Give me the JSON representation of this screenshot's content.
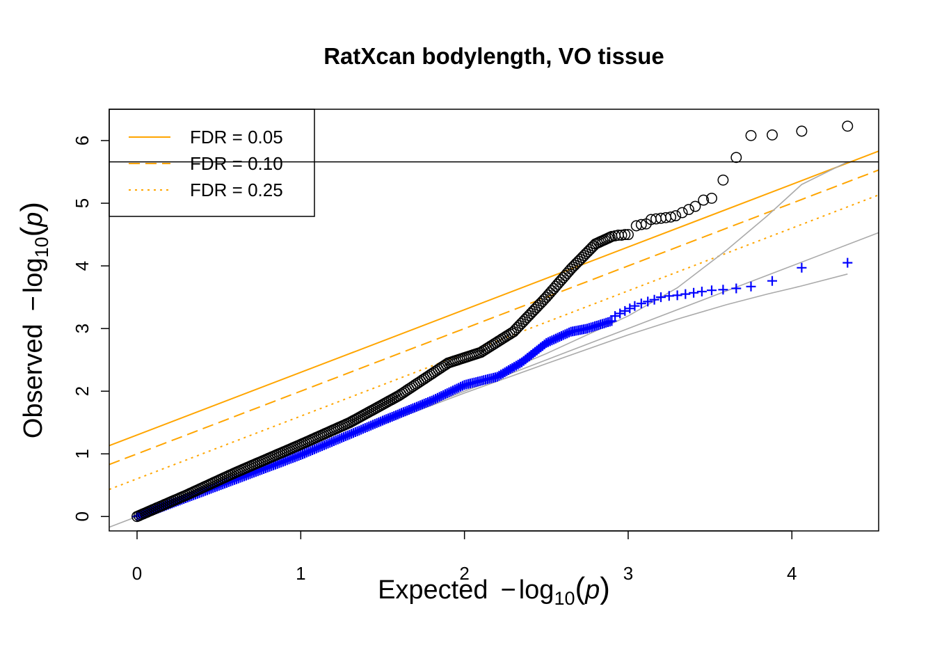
{
  "chart_data": {
    "type": "scatter",
    "title": "RatXcan bodylength, VO tissue",
    "xlabel": {
      "prefix": "Expected",
      "neg": "−",
      "log": "log",
      "base": "10",
      "arg": "p"
    },
    "ylabel": {
      "prefix": "Observed",
      "neg": "−",
      "log": "log",
      "base": "10",
      "arg": "p"
    },
    "xlim": [
      -0.17,
      4.53
    ],
    "ylim": [
      -0.23,
      6.5
    ],
    "xticks": [
      0,
      1,
      2,
      3,
      4
    ],
    "xtick_labels": [
      "0",
      "1",
      "2",
      "3",
      "4"
    ],
    "yticks": [
      0,
      1,
      2,
      3,
      4,
      5,
      6
    ],
    "ytick_labels": [
      "0",
      "1",
      "2",
      "3",
      "4",
      "5",
      "6"
    ],
    "grid": false,
    "legend_position": "top-left",
    "legend": [
      {
        "label": "FDR = 0.05",
        "style": "solid",
        "color": "#FFA500"
      },
      {
        "label": "FDR = 0.10",
        "style": "dashed",
        "color": "#FFA500"
      },
      {
        "label": "FDR = 0.25",
        "style": "dotted",
        "color": "#FFA500"
      }
    ],
    "reference_lines": {
      "fdr_lines": [
        {
          "style": "solid",
          "intercept": 1.301,
          "slope": 1
        },
        {
          "style": "dashed",
          "intercept": 1.0,
          "slope": 1
        },
        {
          "style": "dotted",
          "intercept": 0.602,
          "slope": 1
        }
      ],
      "bonferroni_threshold": 5.66,
      "identity": {
        "intercept": 0,
        "slope": 1,
        "color": "#AAAAAA"
      },
      "confidence_band": {
        "color": "#AAAAAA",
        "upper": [
          [
            0,
            0.01
          ],
          [
            1,
            1.02
          ],
          [
            2,
            2.05
          ],
          [
            2.5,
            2.6
          ],
          [
            3,
            3.2
          ],
          [
            3.3,
            3.65
          ],
          [
            3.6,
            4.25
          ],
          [
            3.85,
            4.8
          ],
          [
            4.06,
            5.3
          ],
          [
            4.34,
            5.66
          ]
        ],
        "lower": [
          [
            0,
            0
          ],
          [
            1,
            0.99
          ],
          [
            2,
            1.97
          ],
          [
            2.5,
            2.44
          ],
          [
            3,
            2.9
          ],
          [
            3.3,
            3.15
          ],
          [
            3.6,
            3.38
          ],
          [
            3.85,
            3.55
          ],
          [
            4.06,
            3.68
          ],
          [
            4.34,
            3.87
          ]
        ]
      }
    },
    "series": [
      {
        "name": "",
        "marker": "circle",
        "color": "#000000",
        "curve": [
          [
            0,
            0
          ],
          [
            0.3,
            0.34
          ],
          [
            0.6,
            0.7
          ],
          [
            1,
            1.15
          ],
          [
            1.3,
            1.5
          ],
          [
            1.6,
            1.93
          ],
          [
            1.9,
            2.45
          ],
          [
            2.1,
            2.62
          ],
          [
            2.3,
            2.95
          ],
          [
            2.5,
            3.5
          ],
          [
            2.65,
            3.95
          ],
          [
            2.8,
            4.35
          ],
          [
            2.9,
            4.47
          ]
        ],
        "points": [
          [
            2.92,
            4.48
          ],
          [
            2.94,
            4.49
          ],
          [
            2.96,
            4.49
          ],
          [
            2.98,
            4.5
          ],
          [
            3.0,
            4.5
          ],
          [
            3.05,
            4.64
          ],
          [
            3.08,
            4.66
          ],
          [
            3.11,
            4.67
          ],
          [
            3.14,
            4.74
          ],
          [
            3.17,
            4.75
          ],
          [
            3.2,
            4.76
          ],
          [
            3.23,
            4.77
          ],
          [
            3.26,
            4.78
          ],
          [
            3.29,
            4.8
          ],
          [
            3.33,
            4.85
          ],
          [
            3.37,
            4.9
          ],
          [
            3.41,
            4.95
          ],
          [
            3.46,
            5.05
          ],
          [
            3.51,
            5.08
          ],
          [
            3.58,
            5.37
          ],
          [
            3.66,
            5.73
          ],
          [
            3.75,
            6.08
          ],
          [
            3.88,
            6.09
          ],
          [
            4.06,
            6.15
          ],
          [
            4.34,
            6.23
          ]
        ]
      },
      {
        "name": "",
        "marker": "plus",
        "color": "#0000FF",
        "curve": [
          [
            0,
            0
          ],
          [
            0.5,
            0.49
          ],
          [
            1,
            0.98
          ],
          [
            1.5,
            1.53
          ],
          [
            1.8,
            1.85
          ],
          [
            2.0,
            2.1
          ],
          [
            2.2,
            2.23
          ],
          [
            2.35,
            2.46
          ],
          [
            2.5,
            2.77
          ],
          [
            2.65,
            2.95
          ],
          [
            2.75,
            3.0
          ],
          [
            2.9,
            3.12
          ]
        ],
        "points": [
          [
            2.92,
            3.2
          ],
          [
            2.95,
            3.24
          ],
          [
            2.98,
            3.28
          ],
          [
            3.01,
            3.32
          ],
          [
            3.04,
            3.36
          ],
          [
            3.08,
            3.4
          ],
          [
            3.12,
            3.43
          ],
          [
            3.16,
            3.46
          ],
          [
            3.2,
            3.5
          ],
          [
            3.25,
            3.52
          ],
          [
            3.3,
            3.53
          ],
          [
            3.35,
            3.55
          ],
          [
            3.4,
            3.57
          ],
          [
            3.45,
            3.59
          ],
          [
            3.51,
            3.61
          ],
          [
            3.58,
            3.62
          ],
          [
            3.66,
            3.64
          ],
          [
            3.75,
            3.67
          ],
          [
            3.88,
            3.76
          ],
          [
            4.06,
            3.97
          ],
          [
            4.34,
            4.05
          ]
        ]
      }
    ]
  }
}
